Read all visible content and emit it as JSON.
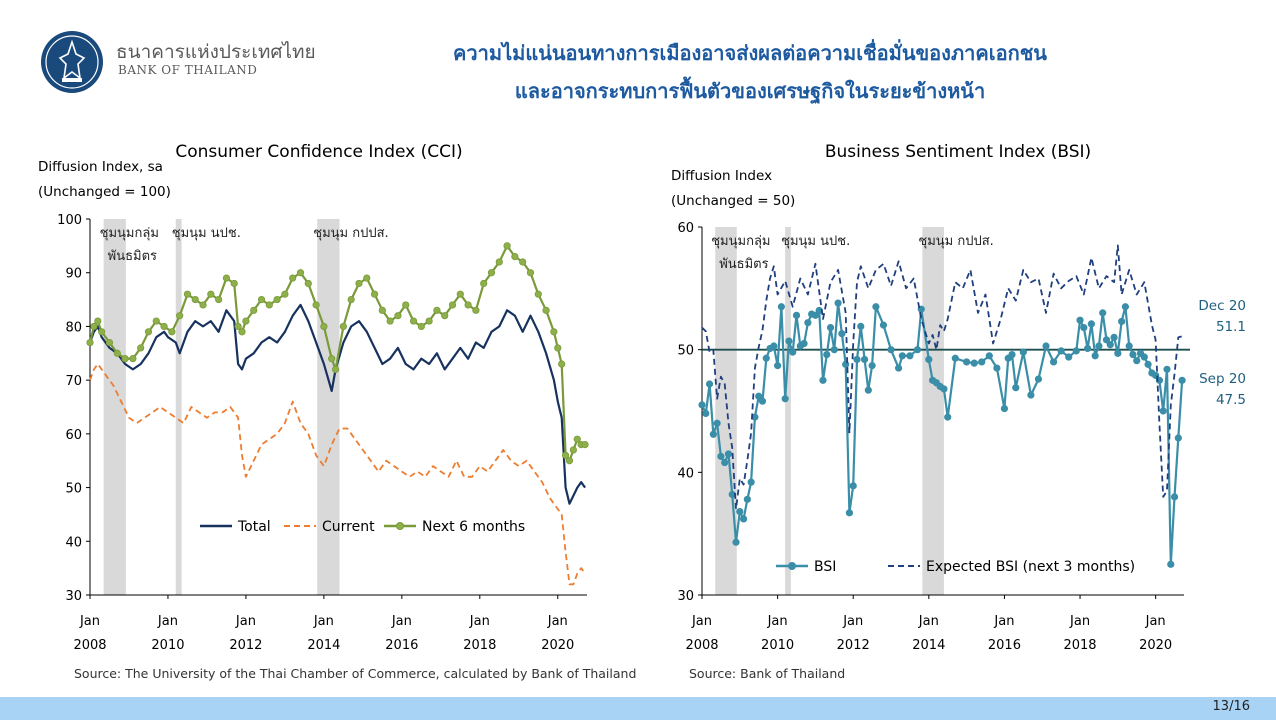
{
  "header": {
    "org_name_th": "ธนาคารแห่งประเทศไทย",
    "org_name_en": "BANK OF THAILAND",
    "headline_line1": "ความไม่แน่นอนทางการเมืองอาจส่งผลต่อความเชื่อมั่นของภาคเอกชน",
    "headline_line2": "และอาจกระทบการฟื้นตัวของเศรษฐกิจในระยะข้างหน้า"
  },
  "footer": {
    "page_number": "13/16"
  },
  "colors": {
    "title_blue": "#1e5aa0",
    "total": "#17325e",
    "current": "#ed7d31",
    "next6": "#7a9a3a",
    "next6_marker": "#8db04a",
    "bsi": "#3a8ea8",
    "expected_bsi": "#1f3f7f",
    "shade": "#d9d9d9"
  },
  "chart_data": [
    {
      "type": "line",
      "title": "Consumer Confidence Index (CCI)",
      "ylabel_line1": "Diffusion Index, sa",
      "ylabel_line2": "(Unchanged = 100)",
      "ylim": [
        30,
        100
      ],
      "yticks": [
        "30",
        "40",
        "50",
        "60",
        "70",
        "80",
        "90",
        "100"
      ],
      "xlim": [
        2008.0,
        2020.75
      ],
      "xticks": [
        {
          "x": 2008,
          "month": "Jan",
          "year": "2008"
        },
        {
          "x": 2010,
          "month": "Jan",
          "year": "2010"
        },
        {
          "x": 2012,
          "month": "Jan",
          "year": "2012"
        },
        {
          "x": 2014,
          "month": "Jan",
          "year": "2014"
        },
        {
          "x": 2016,
          "month": "Jan",
          "year": "2016"
        },
        {
          "x": 2018,
          "month": "Jan",
          "year": "2018"
        },
        {
          "x": 2020,
          "month": "Jan",
          "year": "2020"
        }
      ],
      "shaded_periods": [
        {
          "start": 2008.35,
          "end": 2008.92,
          "label_line1": "ชุมนุมกลุ่ม",
          "label_line2": "พันธมิตร"
        },
        {
          "start": 2010.2,
          "end": 2010.35,
          "label_line1": "ชุมนุม นปช.",
          "label_line2": ""
        },
        {
          "start": 2013.83,
          "end": 2014.4,
          "label_line1": "ชุมนุม กปปส.",
          "label_line2": ""
        }
      ],
      "legend": [
        "Total",
        "Current",
        "Next 6 months"
      ],
      "legend_position": "bottom-center",
      "source": "Source: The University of the Thai Chamber of Commerce, calculated by Bank of Thailand",
      "series": [
        {
          "name": "Total",
          "style": "solid",
          "x": [
            2008.0,
            2008.1,
            2008.2,
            2008.3,
            2008.5,
            2008.7,
            2008.9,
            2009.1,
            2009.3,
            2009.5,
            2009.7,
            2009.9,
            2010.0,
            2010.2,
            2010.3,
            2010.5,
            2010.7,
            2010.9,
            2011.1,
            2011.3,
            2011.5,
            2011.7,
            2011.8,
            2011.9,
            2012.0,
            2012.2,
            2012.4,
            2012.6,
            2012.8,
            2013.0,
            2013.2,
            2013.4,
            2013.6,
            2013.8,
            2014.0,
            2014.2,
            2014.3,
            2014.5,
            2014.7,
            2014.9,
            2015.1,
            2015.3,
            2015.5,
            2015.7,
            2015.9,
            2016.1,
            2016.3,
            2016.5,
            2016.7,
            2016.9,
            2017.1,
            2017.3,
            2017.5,
            2017.7,
            2017.9,
            2018.1,
            2018.3,
            2018.5,
            2018.7,
            2018.9,
            2019.1,
            2019.3,
            2019.5,
            2019.7,
            2019.9,
            2020.0,
            2020.1,
            2020.2,
            2020.3,
            2020.5,
            2020.6,
            2020.7
          ],
          "y": [
            77,
            79,
            80,
            78,
            76,
            75,
            73,
            72,
            73,
            75,
            78,
            79,
            78,
            77,
            75,
            79,
            81,
            80,
            81,
            79,
            83,
            81,
            73,
            72,
            74,
            75,
            77,
            78,
            77,
            79,
            82,
            84,
            81,
            77,
            73,
            68,
            72,
            77,
            80,
            81,
            79,
            76,
            73,
            74,
            76,
            73,
            72,
            74,
            73,
            75,
            72,
            74,
            76,
            74,
            77,
            76,
            79,
            80,
            83,
            82,
            79,
            82,
            79,
            75,
            70,
            66,
            63,
            50,
            47,
            50,
            51,
            50
          ]
        },
        {
          "name": "Current",
          "style": "dashed",
          "x": [
            2008.0,
            2008.1,
            2008.2,
            2008.4,
            2008.6,
            2008.8,
            2009.0,
            2009.2,
            2009.4,
            2009.6,
            2009.8,
            2010.0,
            2010.2,
            2010.4,
            2010.6,
            2010.8,
            2011.0,
            2011.2,
            2011.4,
            2011.6,
            2011.8,
            2011.9,
            2012.0,
            2012.2,
            2012.4,
            2012.6,
            2012.8,
            2013.0,
            2013.2,
            2013.4,
            2013.6,
            2013.8,
            2014.0,
            2014.2,
            2014.4,
            2014.6,
            2014.8,
            2015.0,
            2015.2,
            2015.4,
            2015.6,
            2015.8,
            2016.0,
            2016.2,
            2016.4,
            2016.6,
            2016.8,
            2017.0,
            2017.2,
            2017.4,
            2017.6,
            2017.8,
            2018.0,
            2018.2,
            2018.4,
            2018.6,
            2018.8,
            2019.0,
            2019.2,
            2019.4,
            2019.6,
            2019.8,
            2020.0,
            2020.1,
            2020.2,
            2020.3,
            2020.4,
            2020.5,
            2020.6,
            2020.7
          ],
          "y": [
            70,
            72,
            73,
            71,
            69,
            66,
            63,
            62,
            63,
            64,
            65,
            64,
            63,
            62,
            65,
            64,
            63,
            64,
            64,
            65,
            63,
            56,
            52,
            55,
            58,
            59,
            60,
            62,
            66,
            62,
            60,
            56,
            54,
            58,
            61,
            61,
            59,
            57,
            55,
            53,
            55,
            54,
            53,
            52,
            53,
            52,
            54,
            53,
            52,
            55,
            52,
            52,
            54,
            53,
            55,
            57,
            55,
            54,
            55,
            53,
            51,
            48,
            46,
            45,
            38,
            32,
            32,
            34,
            35,
            34
          ]
        },
        {
          "name": "Next 6 months",
          "style": "solid-marker",
          "x": [
            2008.0,
            2008.1,
            2008.2,
            2008.3,
            2008.5,
            2008.7,
            2008.9,
            2009.1,
            2009.3,
            2009.5,
            2009.7,
            2009.9,
            2010.1,
            2010.3,
            2010.5,
            2010.7,
            2010.9,
            2011.1,
            2011.3,
            2011.5,
            2011.7,
            2011.8,
            2011.9,
            2012.0,
            2012.2,
            2012.4,
            2012.6,
            2012.8,
            2013.0,
            2013.2,
            2013.4,
            2013.6,
            2013.8,
            2014.0,
            2014.2,
            2014.3,
            2014.5,
            2014.7,
            2014.9,
            2015.1,
            2015.3,
            2015.5,
            2015.7,
            2015.9,
            2016.1,
            2016.3,
            2016.5,
            2016.7,
            2016.9,
            2017.1,
            2017.3,
            2017.5,
            2017.7,
            2017.9,
            2018.1,
            2018.3,
            2018.5,
            2018.7,
            2018.9,
            2019.1,
            2019.3,
            2019.5,
            2019.7,
            2019.9,
            2020.0,
            2020.1,
            2020.2,
            2020.3,
            2020.4,
            2020.5,
            2020.6,
            2020.7
          ],
          "y": [
            77,
            80,
            81,
            79,
            77,
            75,
            74,
            74,
            76,
            79,
            81,
            80,
            79,
            82,
            86,
            85,
            84,
            86,
            85,
            89,
            88,
            80,
            79,
            81,
            83,
            85,
            84,
            85,
            86,
            89,
            90,
            88,
            84,
            80,
            74,
            72,
            80,
            85,
            88,
            89,
            86,
            83,
            81,
            82,
            84,
            81,
            80,
            81,
            83,
            82,
            84,
            86,
            84,
            83,
            88,
            90,
            92,
            95,
            93,
            92,
            90,
            86,
            83,
            79,
            76,
            73,
            56,
            55,
            57,
            59,
            58,
            58
          ]
        }
      ]
    },
    {
      "type": "line",
      "title": "Business Sentiment Index (BSI)",
      "ylabel_line1": "Diffusion Index",
      "ylabel_line2": "(Unchanged = 50)",
      "ylim": [
        30,
        60
      ],
      "yticks": [
        "30",
        "40",
        "50",
        "60"
      ],
      "reference_line": 50,
      "xlim": [
        2008.0,
        2020.75
      ],
      "xticks": [
        {
          "x": 2008,
          "month": "Jan",
          "year": "2008"
        },
        {
          "x": 2010,
          "month": "Jan",
          "year": "2010"
        },
        {
          "x": 2012,
          "month": "Jan",
          "year": "2012"
        },
        {
          "x": 2014,
          "month": "Jan",
          "year": "2014"
        },
        {
          "x": 2016,
          "month": "Jan",
          "year": "2016"
        },
        {
          "x": 2018,
          "month": "Jan",
          "year": "2018"
        },
        {
          "x": 2020,
          "month": "Jan",
          "year": "2020"
        }
      ],
      "shaded_periods": [
        {
          "start": 2008.35,
          "end": 2008.92,
          "label_line1": "ชุมนุมกลุ่ม",
          "label_line2": "พันธมิตร"
        },
        {
          "start": 2010.2,
          "end": 2010.35,
          "label_line1": "ชุมนุม นปช.",
          "label_line2": ""
        },
        {
          "start": 2013.83,
          "end": 2014.4,
          "label_line1": "ชุมนุม กปปส.",
          "label_line2": ""
        }
      ],
      "annotations": [
        {
          "line1": "Dec 20",
          "line2": "51.1",
          "y": 51.1
        },
        {
          "line1": "Sep 20",
          "line2": "47.5",
          "y": 47.5
        }
      ],
      "legend": [
        "BSI",
        "Expected BSI (next 3 months)"
      ],
      "legend_position": "bottom-center",
      "source": "Source:  Bank of Thailand",
      "series": [
        {
          "name": "BSI",
          "style": "solid-marker",
          "x": [
            2008.0,
            2008.1,
            2008.2,
            2008.3,
            2008.4,
            2008.5,
            2008.6,
            2008.7,
            2008.8,
            2008.9,
            2009.0,
            2009.1,
            2009.2,
            2009.3,
            2009.4,
            2009.5,
            2009.6,
            2009.7,
            2009.8,
            2009.9,
            2010.0,
            2010.1,
            2010.2,
            2010.3,
            2010.4,
            2010.5,
            2010.6,
            2010.7,
            2010.8,
            2010.9,
            2011.0,
            2011.1,
            2011.2,
            2011.3,
            2011.4,
            2011.5,
            2011.6,
            2011.7,
            2011.8,
            2011.9,
            2012.0,
            2012.1,
            2012.2,
            2012.3,
            2012.4,
            2012.5,
            2012.6,
            2012.8,
            2013.0,
            2013.2,
            2013.3,
            2013.5,
            2013.7,
            2013.8,
            2014.0,
            2014.1,
            2014.2,
            2014.3,
            2014.4,
            2014.5,
            2014.7,
            2015.0,
            2015.2,
            2015.4,
            2015.6,
            2015.8,
            2016.0,
            2016.1,
            2016.2,
            2016.3,
            2016.5,
            2016.7,
            2016.9,
            2017.1,
            2017.3,
            2017.5,
            2017.7,
            2017.9,
            2018.0,
            2018.1,
            2018.2,
            2018.3,
            2018.4,
            2018.5,
            2018.6,
            2018.7,
            2018.8,
            2018.9,
            2019.0,
            2019.1,
            2019.2,
            2019.3,
            2019.4,
            2019.5,
            2019.6,
            2019.7,
            2019.8,
            2019.9,
            2020.0,
            2020.1,
            2020.2,
            2020.3,
            2020.4,
            2020.5,
            2020.6,
            2020.7
          ],
          "y": [
            45.5,
            44.8,
            47.2,
            43.1,
            44.0,
            41.3,
            40.8,
            41.5,
            38.2,
            34.3,
            36.8,
            36.2,
            37.8,
            39.2,
            44.5,
            46.2,
            45.8,
            49.3,
            50.1,
            50.3,
            48.7,
            53.5,
            46.0,
            50.7,
            49.8,
            52.8,
            50.3,
            50.5,
            52.2,
            52.9,
            52.8,
            53.2,
            47.5,
            49.6,
            51.8,
            50.0,
            53.8,
            51.3,
            48.8,
            36.7,
            38.9,
            49.2,
            51.9,
            49.2,
            46.7,
            48.7,
            53.5,
            52.0,
            50.0,
            48.5,
            49.5,
            49.5,
            50.0,
            53.3,
            49.2,
            47.5,
            47.3,
            47.0,
            46.8,
            44.5,
            49.3,
            49.0,
            48.9,
            49.0,
            49.5,
            48.5,
            45.2,
            49.3,
            49.6,
            46.9,
            49.8,
            46.3,
            47.6,
            50.3,
            49.0,
            49.9,
            49.4,
            49.9,
            52.4,
            51.8,
            50.1,
            52.1,
            49.5,
            50.3,
            53.0,
            50.8,
            50.4,
            51.0,
            49.7,
            52.3,
            53.5,
            50.3,
            49.6,
            49.1,
            49.7,
            49.4,
            48.8,
            48.1,
            47.9,
            47.5,
            45.0,
            48.4,
            32.5,
            38.0,
            42.8,
            47.5
          ]
        },
        {
          "name": "Expected BSI (next 3 months)",
          "style": "dashed",
          "x": [
            2008.0,
            2008.1,
            2008.2,
            2008.3,
            2008.4,
            2008.5,
            2008.6,
            2008.7,
            2008.8,
            2008.9,
            2009.0,
            2009.1,
            2009.2,
            2009.3,
            2009.4,
            2009.5,
            2009.6,
            2009.7,
            2009.8,
            2009.9,
            2010.0,
            2010.2,
            2010.4,
            2010.6,
            2010.8,
            2011.0,
            2011.2,
            2011.4,
            2011.6,
            2011.8,
            2011.9,
            2012.0,
            2012.1,
            2012.2,
            2012.4,
            2012.6,
            2012.8,
            2013.0,
            2013.2,
            2013.4,
            2013.6,
            2013.8,
            2014.0,
            2014.1,
            2014.2,
            2014.3,
            2014.4,
            2014.5,
            2014.7,
            2014.9,
            2015.1,
            2015.3,
            2015.5,
            2015.7,
            2015.9,
            2016.1,
            2016.3,
            2016.5,
            2016.7,
            2016.9,
            2017.1,
            2017.3,
            2017.5,
            2017.7,
            2017.9,
            2018.1,
            2018.3,
            2018.5,
            2018.7,
            2018.9,
            2019.0,
            2019.1,
            2019.3,
            2019.5,
            2019.7,
            2019.9,
            2020.0,
            2020.1,
            2020.2,
            2020.3,
            2020.4,
            2020.5,
            2020.6,
            2020.7
          ],
          "y": [
            51.8,
            51.5,
            49.8,
            50.0,
            46.0,
            47.8,
            47.2,
            44.0,
            42.0,
            37.0,
            39.5,
            39.0,
            41.0,
            43.2,
            48.5,
            50.2,
            51.6,
            54.0,
            55.8,
            56.8,
            54.5,
            55.6,
            53.5,
            55.8,
            54.5,
            57.0,
            52.5,
            55.5,
            56.5,
            53.0,
            43.2,
            50.5,
            55.5,
            56.8,
            55.0,
            56.5,
            57.0,
            55.2,
            57.2,
            55.0,
            55.8,
            52.5,
            50.5,
            51.2,
            50.0,
            52.0,
            51.5,
            52.5,
            55.5,
            55.0,
            56.5,
            53.0,
            54.5,
            50.5,
            52.5,
            55.0,
            54.0,
            56.5,
            55.5,
            55.8,
            53.0,
            56.2,
            55.0,
            55.6,
            56.0,
            54.5,
            57.5,
            55.0,
            56.0,
            55.5,
            58.5,
            54.5,
            56.5,
            54.5,
            55.5,
            52.0,
            50.8,
            44.0,
            38.0,
            38.5,
            45.5,
            48.0,
            51.0,
            51.1
          ]
        }
      ]
    }
  ]
}
